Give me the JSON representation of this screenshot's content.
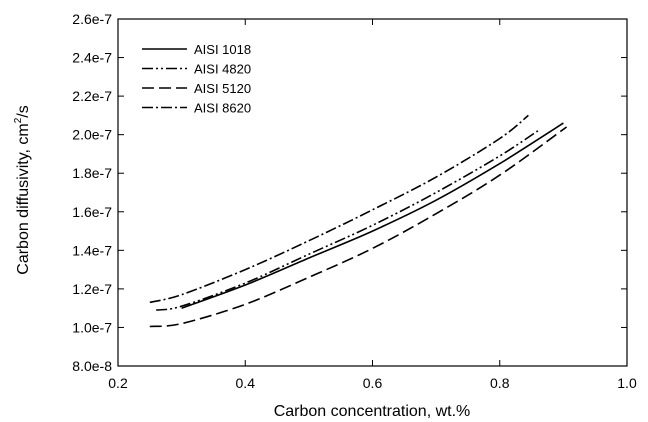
{
  "chart_data": {
    "type": "line",
    "xlabel": "Carbon concentration, wt.%",
    "ylabel_main": "Carbon diffusivity, cm",
    "ylabel_sup": "2",
    "ylabel_tail": "/s",
    "xlim": [
      0.2,
      1.0
    ],
    "ylim": [
      8e-08,
      2.6e-07
    ],
    "x_ticks": [
      0.2,
      0.4,
      0.6,
      0.8,
      1.0
    ],
    "x_tick_labels": [
      "0.2",
      "0.4",
      "0.6",
      "0.8",
      "1.0"
    ],
    "y_ticks": [
      8e-08,
      1e-07,
      1.2e-07,
      1.4e-07,
      1.6e-07,
      1.8e-07,
      2e-07,
      2.2e-07,
      2.4e-07,
      2.6e-07
    ],
    "y_tick_labels": [
      "8.0e-8",
      "1.0e-7",
      "1.2e-7",
      "1.4e-7",
      "1.6e-7",
      "1.8e-7",
      "2.0e-7",
      "2.2e-7",
      "2.4e-7",
      "2.6e-7"
    ],
    "grid": false,
    "legend_position": "top-left",
    "series": [
      {
        "name": "AISI 1018",
        "dash": "solid",
        "x": [
          0.3,
          0.4,
          0.5,
          0.6,
          0.7,
          0.8,
          0.9
        ],
        "y": [
          1.1e-07,
          1.22e-07,
          1.36e-07,
          1.5e-07,
          1.66e-07,
          1.85e-07,
          2.06e-07
        ]
      },
      {
        "name": "AISI 4820",
        "dash": "dash-dot-dot",
        "x": [
          0.26,
          0.3,
          0.4,
          0.5,
          0.6,
          0.7,
          0.8,
          0.86
        ],
        "y": [
          1.09e-07,
          1.11e-07,
          1.23e-07,
          1.38e-07,
          1.53e-07,
          1.7e-07,
          1.89e-07,
          2.02e-07
        ]
      },
      {
        "name": "AISI 5120",
        "dash": "dash",
        "x": [
          0.25,
          0.3,
          0.4,
          0.5,
          0.6,
          0.7,
          0.8,
          0.905
        ],
        "y": [
          1.005e-07,
          1.02e-07,
          1.12e-07,
          1.26e-07,
          1.41e-07,
          1.59e-07,
          1.79e-07,
          2.04e-07
        ]
      },
      {
        "name": "AISI 8620",
        "dash": "dash-dot",
        "x": [
          0.25,
          0.3,
          0.4,
          0.5,
          0.6,
          0.7,
          0.8,
          0.845
        ],
        "y": [
          1.13e-07,
          1.17e-07,
          1.3e-07,
          1.45e-07,
          1.61e-07,
          1.78e-07,
          1.98e-07,
          2.1e-07
        ]
      }
    ]
  }
}
